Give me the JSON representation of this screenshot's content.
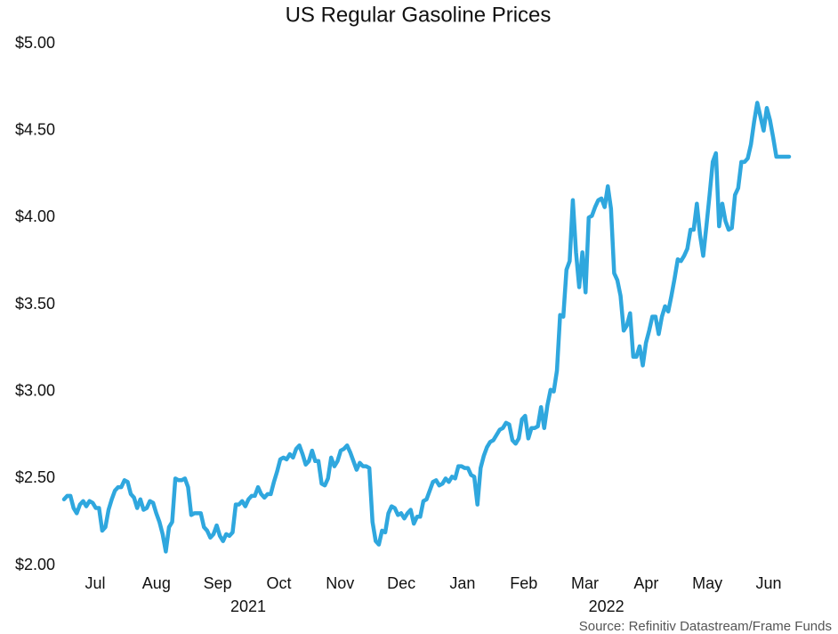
{
  "chart_data": {
    "type": "line",
    "title": "US Regular Gasoline Prices",
    "source": "Source: Refinitiv Datastream/Frame Funds",
    "months": [
      "Jul",
      "Aug",
      "Sep",
      "Oct",
      "Nov",
      "Dec",
      "Jan",
      "Feb",
      "Mar",
      "Apr",
      "May",
      "Jun"
    ],
    "years": [
      "2021",
      "2022"
    ],
    "series": [
      {
        "name": "US Regular Gasoline",
        "color": "#2fa7de",
        "values": [
          2.38,
          2.4,
          2.4,
          2.33,
          2.3,
          2.35,
          2.37,
          2.34,
          2.37,
          2.36,
          2.33,
          2.33,
          2.2,
          2.22,
          2.32,
          2.38,
          2.43,
          2.45,
          2.45,
          2.49,
          2.48,
          2.41,
          2.39,
          2.33,
          2.38,
          2.32,
          2.33,
          2.37,
          2.36,
          2.3,
          2.25,
          2.18,
          2.08,
          2.22,
          2.25,
          2.5,
          2.49,
          2.49,
          2.5,
          2.45,
          2.29,
          2.3,
          2.3,
          2.3,
          2.22,
          2.2,
          2.16,
          2.18,
          2.23,
          2.17,
          2.14,
          2.18,
          2.17,
          2.19,
          2.35,
          2.35,
          2.37,
          2.34,
          2.38,
          2.4,
          2.4,
          2.45,
          2.41,
          2.39,
          2.41,
          2.41,
          2.48,
          2.54,
          2.61,
          2.62,
          2.61,
          2.64,
          2.62,
          2.67,
          2.69,
          2.64,
          2.58,
          2.6,
          2.66,
          2.6,
          2.6,
          2.47,
          2.46,
          2.5,
          2.62,
          2.57,
          2.6,
          2.66,
          2.67,
          2.69,
          2.65,
          2.6,
          2.55,
          2.59,
          2.57,
          2.57,
          2.56,
          2.25,
          2.14,
          2.12,
          2.2,
          2.19,
          2.3,
          2.34,
          2.33,
          2.29,
          2.3,
          2.27,
          2.3,
          2.32,
          2.24,
          2.28,
          2.28,
          2.37,
          2.38,
          2.43,
          2.48,
          2.49,
          2.46,
          2.47,
          2.5,
          2.48,
          2.51,
          2.5,
          2.57,
          2.57,
          2.56,
          2.56,
          2.52,
          2.51,
          2.35,
          2.56,
          2.63,
          2.68,
          2.71,
          2.72,
          2.75,
          2.78,
          2.79,
          2.82,
          2.81,
          2.72,
          2.7,
          2.73,
          2.84,
          2.86,
          2.73,
          2.79,
          2.79,
          2.8,
          2.91,
          2.79,
          2.92,
          3.01,
          3.0,
          3.12,
          3.44,
          3.43,
          3.7,
          3.75,
          4.1,
          3.8,
          3.6,
          3.8,
          3.57,
          4.0,
          4.01,
          4.06,
          4.1,
          4.11,
          4.06,
          4.18,
          4.05,
          3.68,
          3.64,
          3.55,
          3.35,
          3.38,
          3.45,
          3.2,
          3.2,
          3.26,
          3.15,
          3.28,
          3.35,
          3.43,
          3.43,
          3.33,
          3.43,
          3.49,
          3.46,
          3.55,
          3.65,
          3.76,
          3.75,
          3.78,
          3.82,
          3.93,
          3.93,
          4.08,
          3.9,
          3.78,
          3.95,
          4.13,
          4.32,
          4.37,
          3.95,
          4.08,
          3.98,
          3.93,
          3.94,
          4.13,
          4.17,
          4.32,
          4.32,
          4.34,
          4.42,
          4.55,
          4.66,
          4.58,
          4.5,
          4.63,
          4.56,
          4.46,
          4.35,
          4.35,
          4.35,
          4.35,
          4.35
        ]
      }
    ],
    "ylim": [
      2.0,
      5.0
    ],
    "yticks": [
      {
        "value": 2.0,
        "label": "$2.00"
      },
      {
        "value": 2.5,
        "label": "$2.50"
      },
      {
        "value": 3.0,
        "label": "$3.00"
      },
      {
        "value": 3.5,
        "label": "$3.50"
      },
      {
        "value": 4.0,
        "label": "$4.00"
      },
      {
        "value": 4.5,
        "label": "$4.50"
      },
      {
        "value": 5.0,
        "label": "$5.00"
      }
    ],
    "grid": false
  }
}
